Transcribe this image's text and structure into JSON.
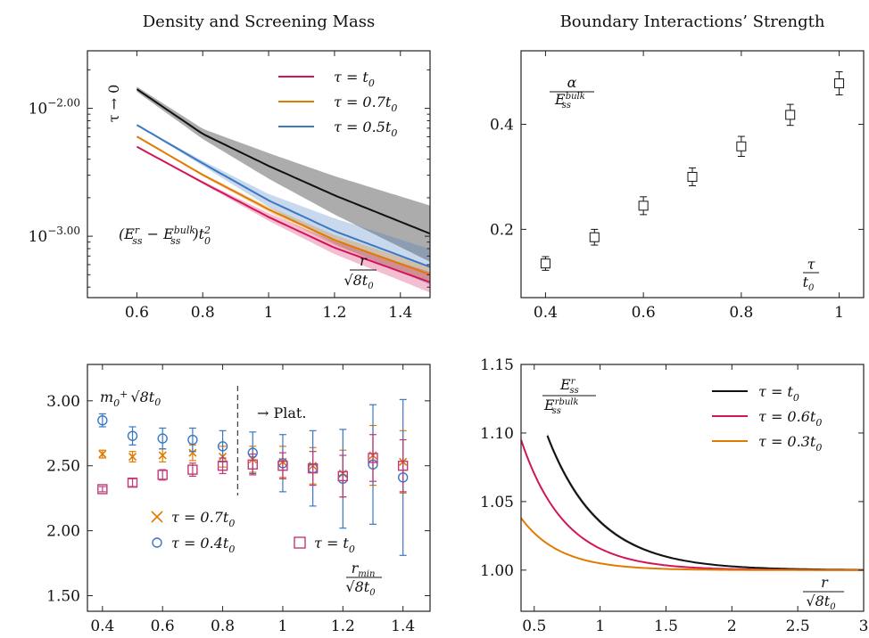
{
  "colors": {
    "red": "#d4145a",
    "orange": "#e07b00",
    "blue": "#3a78c2",
    "black": "#111111",
    "pinkbox": "#c0397a"
  },
  "chart_data": [
    {
      "id": "A",
      "type": "line",
      "title": "Density and Screening Mass",
      "yscale": "log",
      "xlim": [
        0.45,
        1.49
      ],
      "ylim_log10": [
        -3.48,
        -1.55
      ],
      "xticks": [
        "0.6",
        "0.8",
        "1",
        "1.2",
        "1.4"
      ],
      "xtick_values": [
        0.6,
        0.8,
        1.0,
        1.2,
        1.4
      ],
      "ytick_exponents": [
        -2.0,
        -3.0
      ],
      "ytick_labels": {
        "base": "10",
        "exps": [
          "−2.00",
          "−3.00"
        ]
      },
      "ylabel_rot": "τ → 0",
      "formula": {
        "a": "(E",
        "a_sup": "r",
        "a_sub": "ss",
        "b": " − E",
        "b_sup": "bulk",
        "b_sub": "ss",
        "c": ")t",
        "c_sup": "2",
        "c_sub": "0"
      },
      "xaxis_note": {
        "num": "r",
        "den": "√8t",
        "den_sub": "0"
      },
      "legend": [
        {
          "label": "τ = t",
          "sub": "0",
          "color": "red"
        },
        {
          "label": "τ = 0.7t",
          "sub": "0",
          "color": "orange"
        },
        {
          "label": "τ = 0.5t",
          "sub": "0",
          "color": "blue"
        }
      ],
      "series": [
        {
          "color": "black",
          "log10": [
            [
              0.6,
              -1.85
            ],
            [
              0.8,
              -2.2
            ],
            [
              1.0,
              -2.45
            ],
            [
              1.2,
              -2.68
            ],
            [
              1.49,
              -2.98
            ]
          ],
          "band": [
            [
              0.6,
              0.02
            ],
            [
              0.8,
              0.04
            ],
            [
              1.0,
              0.1
            ],
            [
              1.2,
              0.15
            ],
            [
              1.49,
              0.22
            ]
          ]
        },
        {
          "color": "blue",
          "log10": [
            [
              0.6,
              -2.13
            ],
            [
              0.8,
              -2.43
            ],
            [
              1.0,
              -2.72
            ],
            [
              1.2,
              -2.96
            ],
            [
              1.49,
              -3.24
            ]
          ],
          "band": [
            [
              0.6,
              0.0
            ],
            [
              0.8,
              0.02
            ],
            [
              1.0,
              0.05
            ],
            [
              1.2,
              0.1
            ],
            [
              1.49,
              0.14
            ]
          ]
        },
        {
          "color": "orange",
          "log10": [
            [
              0.6,
              -2.22
            ],
            [
              0.8,
              -2.52
            ],
            [
              1.0,
              -2.79
            ],
            [
              1.2,
              -3.03
            ],
            [
              1.49,
              -3.3
            ]
          ],
          "band": [
            [
              0.6,
              0.0
            ],
            [
              0.8,
              0.01
            ],
            [
              1.0,
              0.02
            ],
            [
              1.2,
              0.04
            ],
            [
              1.49,
              0.06
            ]
          ]
        },
        {
          "color": "red",
          "log10": [
            [
              0.6,
              -2.3
            ],
            [
              0.8,
              -2.58
            ],
            [
              1.0,
              -2.85
            ],
            [
              1.2,
              -3.09
            ],
            [
              1.49,
              -3.36
            ]
          ],
          "band": [
            [
              0.6,
              0.0
            ],
            [
              0.8,
              0.01
            ],
            [
              1.0,
              0.03
            ],
            [
              1.2,
              0.05
            ],
            [
              1.49,
              0.08
            ]
          ]
        }
      ]
    },
    {
      "id": "B",
      "type": "scatter",
      "title": "Boundary Interactions’ Strength",
      "xlim": [
        0.35,
        1.05
      ],
      "ylim": [
        0.07,
        0.54
      ],
      "xticks": [
        "0.4",
        "0.6",
        "0.8",
        "1"
      ],
      "xtick_values": [
        0.4,
        0.6,
        0.8,
        1.0
      ],
      "yticks": [
        "0.2",
        "0.4"
      ],
      "ytick_values": [
        0.2,
        0.4
      ],
      "ylabel_frac": {
        "num": "α",
        "den": "E",
        "den_sup": "bulk",
        "den_sub": "ss"
      },
      "xaxis_note": {
        "num": "τ",
        "den": "t",
        "den_sub": "0"
      },
      "points": [
        {
          "x": 0.4,
          "y": 0.135,
          "err": 0.013
        },
        {
          "x": 0.5,
          "y": 0.185,
          "err": 0.015
        },
        {
          "x": 0.6,
          "y": 0.245,
          "err": 0.017
        },
        {
          "x": 0.7,
          "y": 0.3,
          "err": 0.017
        },
        {
          "x": 0.8,
          "y": 0.358,
          "err": 0.019
        },
        {
          "x": 0.9,
          "y": 0.418,
          "err": 0.02
        },
        {
          "x": 1.0,
          "y": 0.478,
          "err": 0.022
        }
      ]
    },
    {
      "id": "C",
      "type": "scatter",
      "xlim": [
        0.35,
        1.49
      ],
      "ylim": [
        1.38,
        3.28
      ],
      "xticks": [
        "0.4",
        "0.6",
        "0.8",
        "1",
        "1.2",
        "1.4"
      ],
      "xtick_values": [
        0.4,
        0.6,
        0.8,
        1.0,
        1.2,
        1.4
      ],
      "yticks": [
        "1.50",
        "2.00",
        "2.50",
        "3.00"
      ],
      "ytick_values": [
        1.5,
        2.0,
        2.5,
        3.0
      ],
      "ylabel_text": {
        "m": "m",
        "sub": "0",
        "sup": "+",
        "root": "√8t",
        "root_sub": "0"
      },
      "plateau": {
        "x": 0.85,
        "label": "→ Plat."
      },
      "xaxis_note": {
        "num": "r",
        "num_sub": "min",
        "den": "√8t",
        "den_sub": "0"
      },
      "legend": [
        {
          "label": "τ = 0.7t",
          "sub": "0",
          "color": "orange",
          "marker": "x"
        },
        {
          "label": "τ = 0.4t",
          "sub": "0",
          "color": "blue",
          "marker": "o"
        },
        {
          "label": "τ = t",
          "sub": "0",
          "color": "pinkbox",
          "marker": "s"
        }
      ],
      "series": [
        {
          "color": "orange",
          "marker": "x",
          "points": [
            [
              0.4,
              2.59,
              0.03
            ],
            [
              0.5,
              2.57,
              0.04
            ],
            [
              0.6,
              2.58,
              0.05
            ],
            [
              0.7,
              2.6,
              0.06
            ],
            [
              0.8,
              2.57,
              0.08
            ],
            [
              0.9,
              2.55,
              0.1
            ],
            [
              1.0,
              2.53,
              0.12
            ],
            [
              1.1,
              2.5,
              0.14
            ],
            [
              1.2,
              2.44,
              0.18
            ],
            [
              1.3,
              2.58,
              0.23
            ],
            [
              1.4,
              2.53,
              0.24
            ]
          ]
        },
        {
          "color": "blue",
          "marker": "o",
          "points": [
            [
              0.4,
              2.85,
              0.05
            ],
            [
              0.5,
              2.73,
              0.07
            ],
            [
              0.6,
              2.71,
              0.08
            ],
            [
              0.7,
              2.7,
              0.09
            ],
            [
              0.8,
              2.65,
              0.12
            ],
            [
              0.9,
              2.6,
              0.16
            ],
            [
              1.0,
              2.52,
              0.22
            ],
            [
              1.1,
              2.48,
              0.29
            ],
            [
              1.2,
              2.4,
              0.38
            ],
            [
              1.3,
              2.51,
              0.46
            ],
            [
              1.4,
              2.41,
              0.6
            ]
          ]
        },
        {
          "color": "pinkbox",
          "marker": "s",
          "points": [
            [
              0.4,
              2.32,
              0.02
            ],
            [
              0.5,
              2.37,
              0.03
            ],
            [
              0.6,
              2.43,
              0.04
            ],
            [
              0.7,
              2.47,
              0.05
            ],
            [
              0.8,
              2.5,
              0.06
            ],
            [
              0.9,
              2.51,
              0.08
            ],
            [
              1.0,
              2.5,
              0.1
            ],
            [
              1.1,
              2.48,
              0.13
            ],
            [
              1.2,
              2.42,
              0.16
            ],
            [
              1.3,
              2.56,
              0.18
            ],
            [
              1.4,
              2.5,
              0.2
            ]
          ]
        }
      ]
    },
    {
      "id": "D",
      "type": "line",
      "xlim": [
        0.4,
        3.0
      ],
      "ylim": [
        0.97,
        1.15
      ],
      "xticks": [
        "0.5",
        "1",
        "1.5",
        "2",
        "2.5",
        "3"
      ],
      "xtick_values": [
        0.5,
        1.0,
        1.5,
        2.0,
        2.5,
        3.0
      ],
      "yticks": [
        "1.00",
        "1.05",
        "1.10",
        "1.15"
      ],
      "ytick_values": [
        1.0,
        1.05,
        1.1,
        1.15
      ],
      "ylabel_frac": {
        "num": "E",
        "num_sup": "r",
        "num_sub": "ss",
        "den": "E",
        "den_sup": "rbulk",
        "den_sub": "ss"
      },
      "xaxis_note": {
        "num": "r",
        "den": "√8t",
        "den_sub": "0"
      },
      "legend": [
        {
          "label": "τ = t",
          "sub": "0",
          "color": "black"
        },
        {
          "label": "τ = 0.6t",
          "sub": "0",
          "color": "red"
        },
        {
          "label": "τ = 0.3t",
          "sub": "0",
          "color": "orange"
        }
      ],
      "series": [
        {
          "color": "black",
          "x0": 0.6,
          "amp": 0.098,
          "rate": 2.55,
          "band": 0.0022
        },
        {
          "color": "red",
          "x0": 0.4,
          "amp": 0.095,
          "rate": 3.0,
          "band": 0.0008
        },
        {
          "color": "orange",
          "x0": 0.4,
          "amp": 0.038,
          "rate": 3.4,
          "band": 0
        }
      ]
    }
  ]
}
